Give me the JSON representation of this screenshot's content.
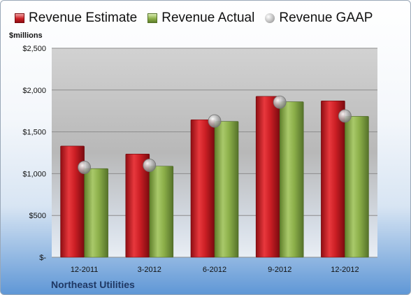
{
  "legend": {
    "estimate": "Revenue Estimate",
    "actual": "Revenue Actual",
    "gaap": "Revenue GAAP"
  },
  "unit_label": "$millions",
  "company": "Northeast Utilities",
  "colors": {
    "estimate": "#cc1f25",
    "actual": "#8db04a",
    "gaap": "#b8b8b8"
  },
  "chart_data": {
    "type": "bar",
    "categories": [
      "12-2011",
      "3-2012",
      "6-2012",
      "9-2012",
      "12-2012"
    ],
    "series": [
      {
        "name": "Revenue Estimate",
        "values": [
          1330,
          1235,
          1645,
          1925,
          1870
        ]
      },
      {
        "name": "Revenue Actual",
        "values": [
          1060,
          1090,
          1625,
          1860,
          1685
        ]
      },
      {
        "name": "Revenue GAAP",
        "values": [
          1075,
          1100,
          1630,
          1855,
          1690
        ],
        "style": "marker"
      }
    ],
    "ylim": [
      0,
      2500
    ],
    "yticks": [
      0,
      500,
      1000,
      1500,
      2000,
      2500
    ],
    "ytick_labels": [
      "$-",
      "$500",
      "$1,000",
      "$1,500",
      "$2,000",
      "$2,500"
    ],
    "ylabel": "$millions",
    "grid": true,
    "legend_position": "top"
  }
}
